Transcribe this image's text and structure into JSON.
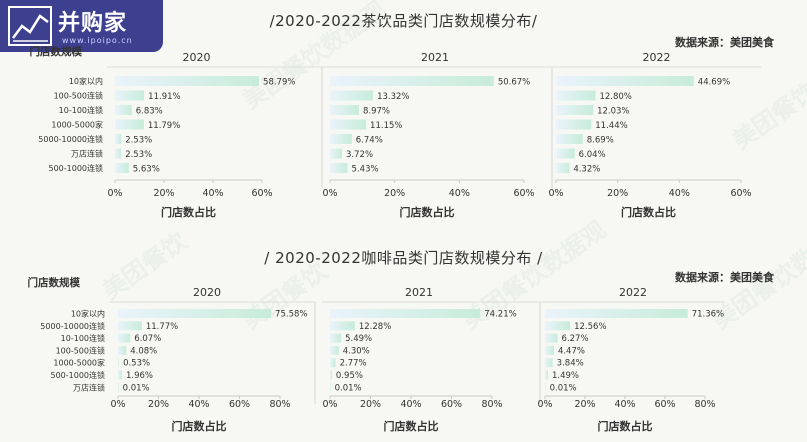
{
  "logo": {
    "text": "并购家",
    "url": "www.ipoipo.cn"
  },
  "watermark": {
    "text": "美团餐饮数据观",
    "short": "美团餐饮"
  },
  "colors": {
    "bar_start": "#eaf3fb",
    "bar_end": "#c7ecd9",
    "axis": "#c9c9c9",
    "text": "#333333"
  },
  "chart_data": [
    {
      "type": "bar",
      "orientation": "horizontal",
      "title": "/2020-2022茶饮品类门店数规模分布/",
      "source": "数据来源：美团美食",
      "ylabel": "门店数规模",
      "xlabel": "门店数占比",
      "xlim": [
        0,
        60
      ],
      "xticks": [
        "0%",
        "20%",
        "40%",
        "60%"
      ],
      "panels": [
        {
          "name": "2020",
          "categories": [
            "10家以内",
            "100-500连锁",
            "10-100连锁",
            "1000-5000家",
            "5000-10000连锁",
            "万店连锁",
            "500-1000连锁"
          ],
          "values": [
            58.79,
            11.91,
            6.83,
            11.79,
            2.53,
            2.53,
            5.63
          ],
          "labels": [
            "58.79%",
            "11.91%",
            "6.83%",
            "11.79%",
            "2.53%",
            "2.53%",
            "5.63%"
          ]
        },
        {
          "name": "2021",
          "values": [
            50.67,
            13.32,
            8.97,
            11.15,
            6.74,
            3.72,
            5.43
          ],
          "labels": [
            "50.67%",
            "13.32%",
            "8.97%",
            "11.15%",
            "6.74%",
            "3.72%",
            "5.43%"
          ]
        },
        {
          "name": "2022",
          "values": [
            44.69,
            12.8,
            12.03,
            11.44,
            8.69,
            6.04,
            4.32
          ],
          "labels": [
            "44.69%",
            "12.80%",
            "12.03%",
            "11.44%",
            "8.69%",
            "6.04%",
            "4.32%"
          ]
        }
      ]
    },
    {
      "type": "bar",
      "orientation": "horizontal",
      "title": "/ 2020-2022咖啡品类门店数规模分布 /",
      "source": "数据来源：美团美食",
      "ylabel": "门店数规模",
      "xlabel": "门店数占比",
      "xlim": [
        0,
        80
      ],
      "xticks": [
        "0%",
        "20%",
        "40%",
        "60%",
        "80%"
      ],
      "panels": [
        {
          "name": "2020",
          "categories": [
            "10家以内",
            "5000-10000连锁",
            "10-100连锁",
            "100-500连锁",
            "1000-5000家",
            "500-1000连锁",
            "万店连锁"
          ],
          "values": [
            75.58,
            11.77,
            6.07,
            4.08,
            0.53,
            1.96,
            0.01
          ],
          "labels": [
            "75.58%",
            "11.77%",
            "6.07%",
            "4.08%",
            "0.53%",
            "1.96%",
            "0.01%"
          ]
        },
        {
          "name": "2021",
          "values": [
            74.21,
            12.28,
            5.49,
            4.3,
            2.77,
            0.95,
            0.01
          ],
          "labels": [
            "74.21%",
            "12.28%",
            "5.49%",
            "4.30%",
            "2.77%",
            "0.95%",
            "0.01%"
          ]
        },
        {
          "name": "2022",
          "values": [
            71.36,
            12.56,
            6.27,
            4.47,
            3.84,
            1.49,
            0.01
          ],
          "labels": [
            "71.36%",
            "12.56%",
            "6.27%",
            "4.47%",
            "3.84%",
            "1.49%",
            "0.01%"
          ]
        }
      ]
    }
  ]
}
